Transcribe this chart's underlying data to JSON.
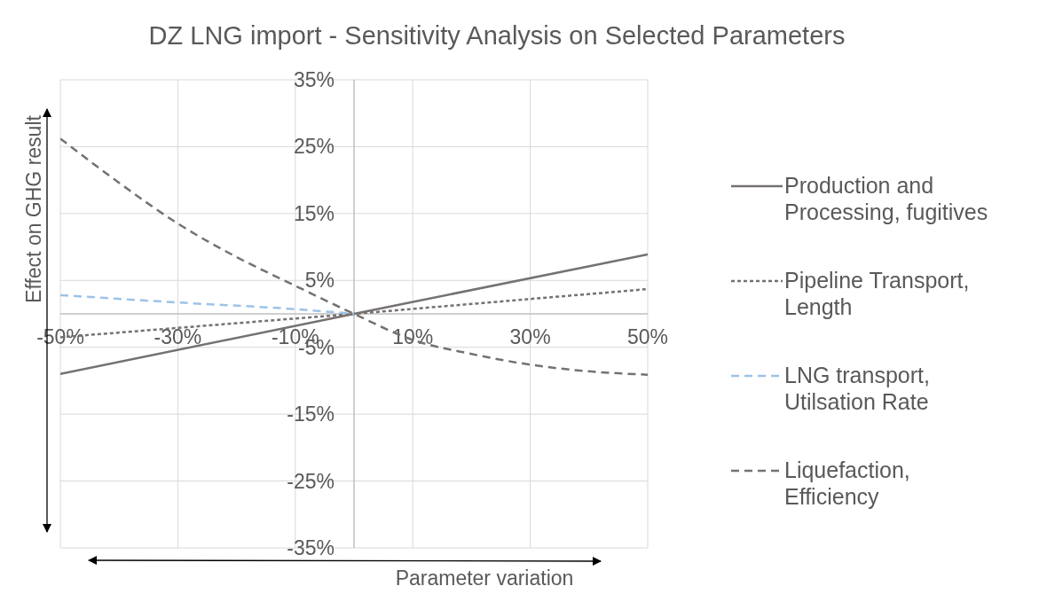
{
  "chart_data": {
    "type": "line",
    "title": "DZ LNG import - Sensitivity Analysis on Selected Parameters",
    "xlabel": "Parameter variation",
    "ylabel": "Effect on GHG result",
    "xlim": [
      -50,
      50
    ],
    "xticks": [
      {
        "value": -50,
        "label": "-50%"
      },
      {
        "value": -30,
        "label": "-30%"
      },
      {
        "value": -10,
        "label": "-10%"
      },
      {
        "value": 10,
        "label": "10%"
      },
      {
        "value": 30,
        "label": "30%"
      },
      {
        "value": 50,
        "label": "50%"
      }
    ],
    "ylim": [
      -35,
      35
    ],
    "yticks": [
      {
        "value": -35,
        "label": "-35%"
      },
      {
        "value": -25,
        "label": "-25%"
      },
      {
        "value": -15,
        "label": "-15%"
      },
      {
        "value": -5,
        "label": "-5%"
      },
      {
        "value": 5,
        "label": "5%"
      },
      {
        "value": 15,
        "label": "15%"
      },
      {
        "value": 25,
        "label": "25%"
      },
      {
        "value": 35,
        "label": "35%"
      }
    ],
    "grid": true,
    "legend": "right",
    "marker": "none",
    "series": [
      {
        "name": "Production and Processing, fugitives",
        "color": "#767171",
        "line_style": "solid",
        "x": [
          -50,
          0,
          50
        ],
        "values": [
          -9.0,
          0,
          8.9
        ]
      },
      {
        "name": "Pipeline Transport, Length",
        "color": "#767171",
        "line_style": "dotted",
        "x": [
          -50,
          0,
          50
        ],
        "values": [
          -3.5,
          0,
          3.7
        ]
      },
      {
        "name": "LNG transport, Utilsation Rate",
        "color": "#9dc3e6",
        "line_style": "dashed",
        "x": [
          -50,
          -30,
          -10,
          0
        ],
        "values": [
          2.8,
          1.7,
          0.7,
          0
        ]
      },
      {
        "name": "Liquefaction, Efficiency",
        "color": "#767171",
        "line_style": "dashed",
        "x": [
          -50,
          -40,
          -30,
          -20,
          -10,
          0,
          10,
          20,
          30,
          40,
          50
        ],
        "values": [
          26.2,
          19.6,
          13.5,
          8.5,
          4.2,
          0,
          -3.9,
          -6.0,
          -7.6,
          -8.6,
          -9.1
        ]
      }
    ]
  }
}
